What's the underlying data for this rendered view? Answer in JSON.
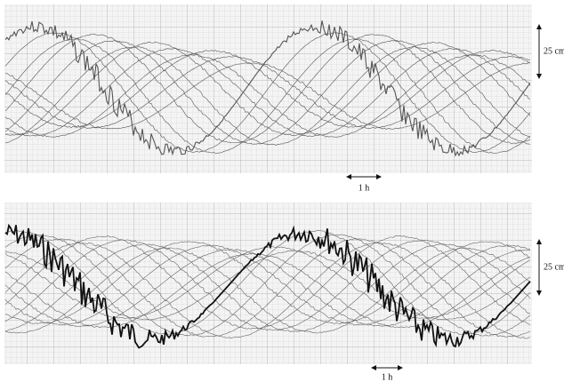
{
  "panels": [
    {
      "scale_vertical": "25 cm",
      "scale_horizontal": "1 h"
    },
    {
      "scale_vertical": "25 cm",
      "scale_horizontal": "1 h"
    }
  ]
}
